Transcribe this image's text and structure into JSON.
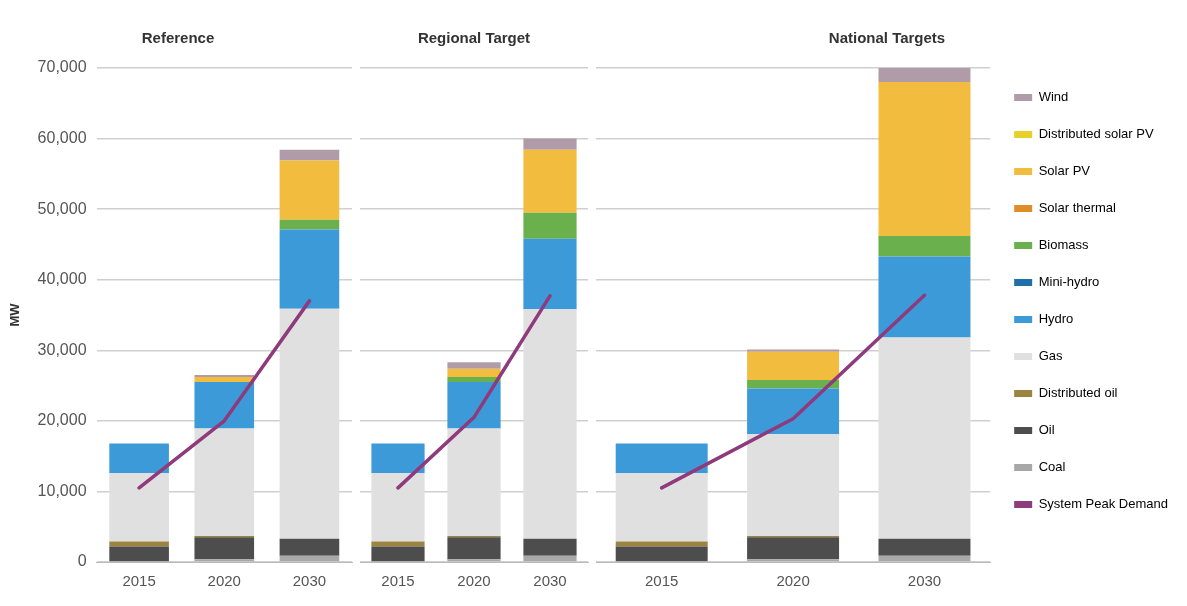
{
  "chart_data": [
    {
      "type": "bar",
      "title": "Reference",
      "ylabel": "MW",
      "categories": [
        "2015",
        "2020",
        "2030"
      ],
      "stacked": true,
      "ylim": [
        0,
        70000
      ],
      "yticks": [
        {
          "value": 0,
          "label": "0"
        },
        {
          "value": 10000,
          "label": "10,000"
        },
        {
          "value": 20000,
          "label": "20,000"
        },
        {
          "value": 30000,
          "label": "30,000"
        },
        {
          "value": 40000,
          "label": "40,000"
        },
        {
          "value": 50000,
          "label": "50,000"
        },
        {
          "value": 60000,
          "label": "60,000"
        },
        {
          "value": 70000,
          "label": "70,000"
        }
      ],
      "grid": "y",
      "legend": false,
      "series": [
        {
          "type": "line",
          "color": "#8e3a7c",
          "values": [
            10500,
            20000,
            37000
          ]
        },
        {
          "color": "#a8a8a8",
          "values": [
            0,
            400,
            900
          ]
        },
        {
          "color": "#4d4d4d",
          "values": [
            2200,
            3100,
            2400
          ]
        },
        {
          "color": "#9a8440",
          "values": [
            700,
            200,
            0
          ]
        },
        {
          "color": "#e0e0e0",
          "values": [
            9700,
            15200,
            32600
          ]
        },
        {
          "color": "#3d9ad8",
          "values": [
            4200,
            6600,
            11200
          ]
        },
        {
          "color": "#1f6fa8",
          "values": [
            0,
            0,
            0
          ]
        },
        {
          "color": "#6ab04c",
          "values": [
            0,
            0,
            1400
          ]
        },
        {
          "color": "#e08e2a",
          "values": [
            0,
            0,
            0
          ]
        },
        {
          "color": "#f2bd3e",
          "values": [
            0,
            700,
            8400
          ]
        },
        {
          "color": "#e8d02c",
          "values": [
            0,
            0,
            0
          ]
        },
        {
          "color": "#b09ca8",
          "values": [
            0,
            300,
            1500
          ]
        }
      ]
    },
    {
      "type": "bar",
      "title": "Regional Target",
      "categories": [
        "2015",
        "2020",
        "2030"
      ],
      "stacked": true,
      "ylim": [
        0,
        70000
      ],
      "yticks": [
        0,
        10000,
        20000,
        30000,
        40000,
        50000,
        60000,
        70000
      ],
      "grid": "y",
      "legend": false,
      "tick_labels": "x",
      "series": [
        {
          "type": "line",
          "color": "#8e3a7c",
          "values": [
            10500,
            20500,
            37700
          ]
        },
        {
          "color": "#a8a8a8",
          "values": [
            0,
            400,
            900
          ]
        },
        {
          "color": "#4d4d4d",
          "values": [
            2200,
            3100,
            2400
          ]
        },
        {
          "color": "#9a8440",
          "values": [
            700,
            200,
            0
          ]
        },
        {
          "color": "#e0e0e0",
          "values": [
            9700,
            15200,
            32500
          ]
        },
        {
          "color": "#3d9ad8",
          "values": [
            4200,
            6600,
            10000
          ]
        },
        {
          "color": "#1f6fa8",
          "values": [
            0,
            0,
            0
          ]
        },
        {
          "color": "#6ab04c",
          "values": [
            0,
            700,
            3700
          ]
        },
        {
          "color": "#e08e2a",
          "values": [
            0,
            0,
            0
          ]
        },
        {
          "color": "#f2bd3e",
          "values": [
            0,
            1200,
            8900
          ]
        },
        {
          "color": "#e8d02c",
          "values": [
            0,
            0,
            0
          ]
        },
        {
          "color": "#b09ca8",
          "values": [
            0,
            900,
            1600
          ]
        }
      ]
    },
    {
      "type": "bar",
      "title": "National Targets",
      "categories": [
        "2015",
        "2020",
        "2030"
      ],
      "stacked": true,
      "ylim": [
        0,
        70000
      ],
      "yticks": [
        0,
        10000,
        20000,
        30000,
        40000,
        50000,
        60000,
        70000
      ],
      "grid": "y",
      "legend": "right",
      "tick_labels": "x",
      "series": [
        {
          "type": "line",
          "name": "System Peak Demand",
          "color": "#8e3a7c",
          "values": [
            10500,
            20300,
            37800
          ]
        },
        {
          "name": "Coal",
          "color": "#a8a8a8",
          "values": [
            0,
            400,
            900
          ]
        },
        {
          "name": "Oil",
          "color": "#4d4d4d",
          "values": [
            2200,
            3100,
            2400
          ]
        },
        {
          "name": "Distributed oil",
          "color": "#9a8440",
          "values": [
            700,
            200,
            0
          ]
        },
        {
          "name": "Gas",
          "color": "#e0e0e0",
          "values": [
            9700,
            14400,
            28500
          ]
        },
        {
          "name": "Hydro",
          "color": "#3d9ad8",
          "values": [
            4200,
            6500,
            11500
          ]
        },
        {
          "name": "Mini-hydro",
          "color": "#1f6fa8",
          "values": [
            0,
            0,
            0
          ]
        },
        {
          "name": "Biomass",
          "color": "#6ab04c",
          "values": [
            0,
            1200,
            2900
          ]
        },
        {
          "name": "Solar thermal",
          "color": "#e08e2a",
          "values": [
            0,
            0,
            0
          ]
        },
        {
          "name": "Solar PV",
          "color": "#f2bd3e",
          "values": [
            0,
            4000,
            21800
          ]
        },
        {
          "name": "Distributed solar PV",
          "color": "#e8d02c",
          "values": [
            0,
            0,
            0
          ]
        },
        {
          "name": "Wind",
          "color": "#b09ca8",
          "values": [
            0,
            300,
            2000
          ]
        }
      ]
    }
  ]
}
